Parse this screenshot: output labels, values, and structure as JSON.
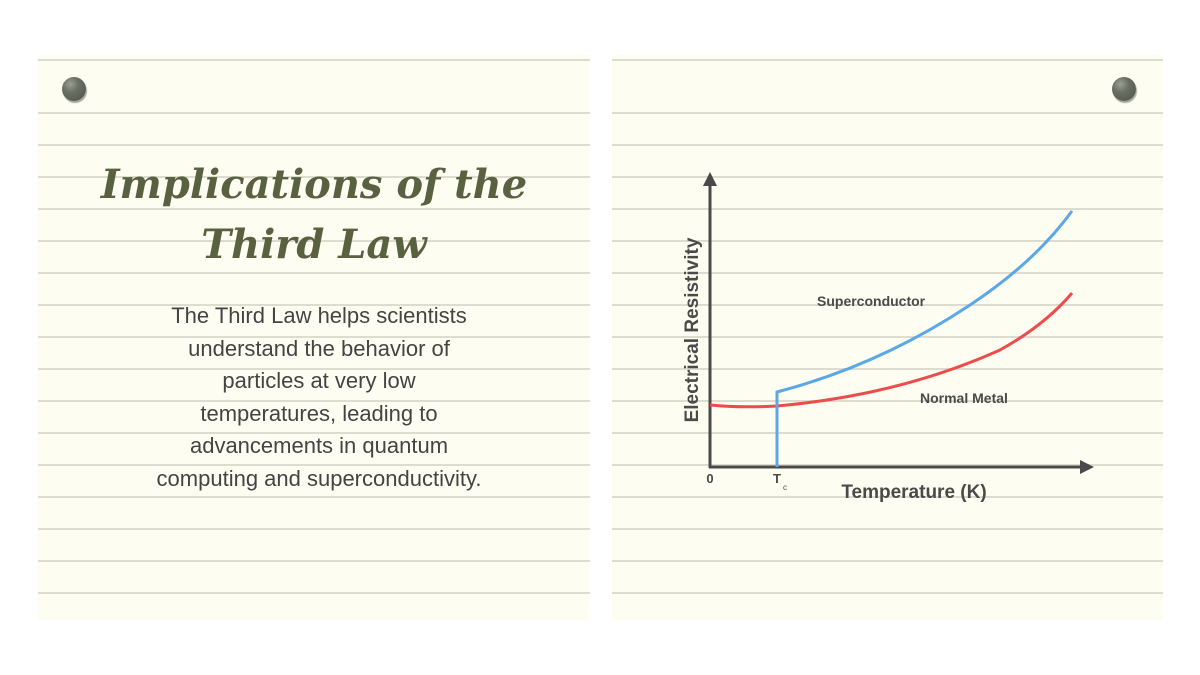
{
  "left_card": {
    "title": "Implications of the Third Law",
    "body": "The Third Law helps scientists understand the behavior of particles at very low temperatures, leading to advancements in quantum computing and superconductivity."
  },
  "diagram": {
    "y_axis_label": "Electrical Resistivity",
    "x_axis_label": "Temperature (K)",
    "origin_label": "0",
    "tc_label": "T",
    "tc_subscript": "c",
    "series": [
      {
        "name": "Superconductor",
        "color": "#5aa8e8"
      },
      {
        "name": "Normal Metal",
        "color": "#ee4b4b"
      }
    ]
  }
}
